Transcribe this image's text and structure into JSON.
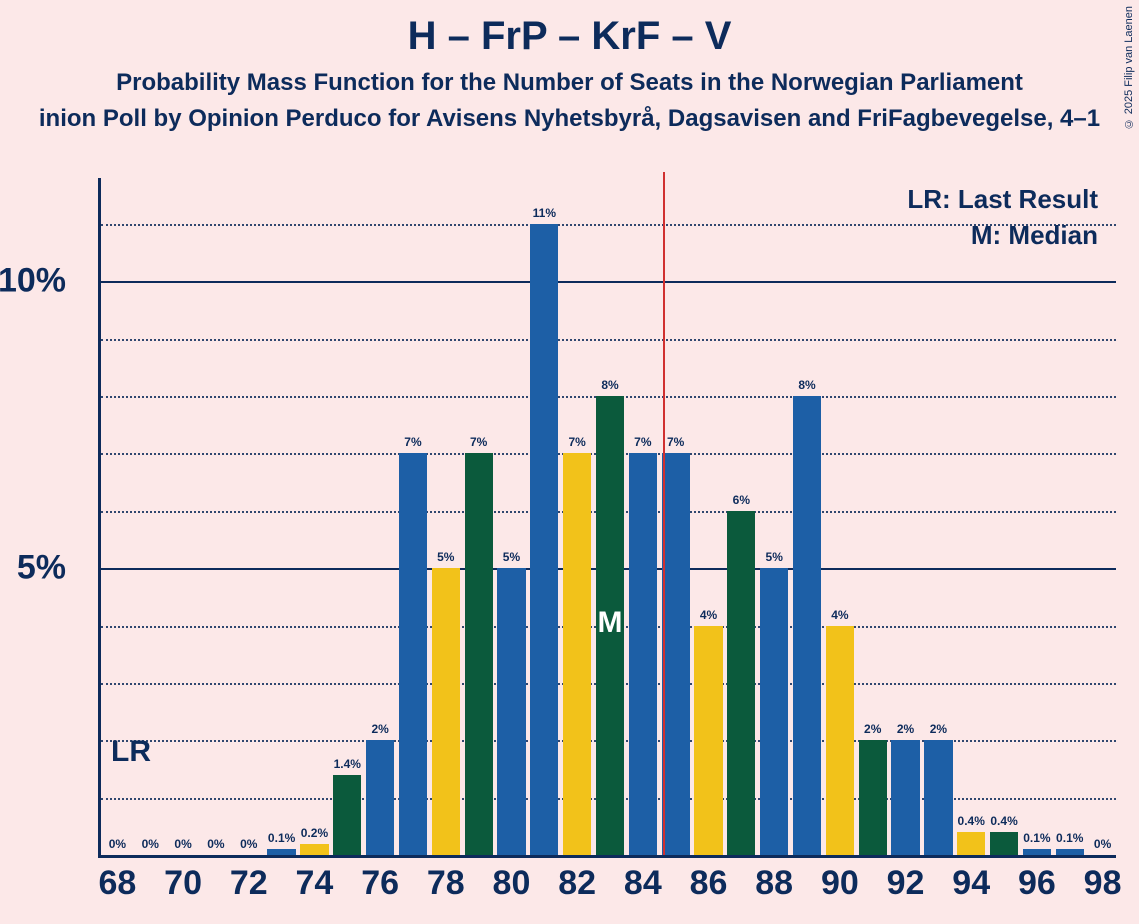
{
  "title": "H – FrP – KrF – V",
  "subtitle": "Probability Mass Function for the Number of Seats in the Norwegian Parliament",
  "subtitle2": "inion Poll by Opinion Perduco for Avisens Nyhetsbyrå, Dagsavisen and FriFagbevegelse, 4–1",
  "copyright": "© 2025 Filip van Laenen",
  "legend_lr": "LR: Last Result",
  "legend_m": "M: Median",
  "lr_label": "LR",
  "m_label": "M",
  "chart": {
    "type": "bar",
    "background_color": "#fce8e8",
    "axis_color": "#0d2b5b",
    "grid_major_color": "#0d2b5b",
    "grid_minor_color": "#0d2b5b",
    "ylim_max": 11.8,
    "y_major_ticks": [
      5,
      10
    ],
    "y_minor_step": 1,
    "x_ticks": [
      68,
      70,
      72,
      74,
      76,
      78,
      80,
      82,
      84,
      86,
      88,
      90,
      92,
      94,
      96,
      98
    ],
    "x_min": 67.5,
    "x_max": 98.5,
    "bar_width_units": 0.86,
    "median_x": 84.6,
    "lr_x": 68,
    "colors": {
      "blue": "#1d5fa6",
      "green": "#0b5a3c",
      "yellow": "#f2c21a"
    },
    "bars": [
      {
        "x": 68,
        "v": 0,
        "c": "blue",
        "l": "0%"
      },
      {
        "x": 69,
        "v": 0,
        "c": "blue",
        "l": "0%"
      },
      {
        "x": 70,
        "v": 0,
        "c": "blue",
        "l": "0%"
      },
      {
        "x": 71,
        "v": 0,
        "c": "blue",
        "l": "0%"
      },
      {
        "x": 72,
        "v": 0,
        "c": "blue",
        "l": "0%"
      },
      {
        "x": 73,
        "v": 0.1,
        "c": "blue",
        "l": "0.1%"
      },
      {
        "x": 74,
        "v": 0.2,
        "c": "yellow",
        "l": "0.2%"
      },
      {
        "x": 75,
        "v": 1.4,
        "c": "green",
        "l": "1.4%"
      },
      {
        "x": 76,
        "v": 2,
        "c": "blue",
        "l": "2%"
      },
      {
        "x": 77,
        "v": 7,
        "c": "blue",
        "l": "7%"
      },
      {
        "x": 78,
        "v": 5,
        "c": "yellow",
        "l": "5%"
      },
      {
        "x": 79,
        "v": 7,
        "c": "green",
        "l": "7%"
      },
      {
        "x": 80,
        "v": 5,
        "c": "blue",
        "l": "5%"
      },
      {
        "x": 81,
        "v": 11,
        "c": "blue",
        "l": "11%"
      },
      {
        "x": 82,
        "v": 7,
        "c": "yellow",
        "l": "7%"
      },
      {
        "x": 83,
        "v": 8,
        "c": "green",
        "l": "8%"
      },
      {
        "x": 84,
        "v": 7,
        "c": "blue",
        "l": "7%"
      },
      {
        "x": 85,
        "v": 7,
        "c": "blue",
        "l": "7%"
      },
      {
        "x": 86,
        "v": 4,
        "c": "yellow",
        "l": "4%"
      },
      {
        "x": 87,
        "v": 6,
        "c": "green",
        "l": "6%"
      },
      {
        "x": 88,
        "v": 5,
        "c": "blue",
        "l": "5%"
      },
      {
        "x": 89,
        "v": 8,
        "c": "blue",
        "l": "8%"
      },
      {
        "x": 90,
        "v": 4,
        "c": "yellow",
        "l": "4%"
      },
      {
        "x": 91,
        "v": 2,
        "c": "green",
        "l": "2%"
      },
      {
        "x": 92,
        "v": 2,
        "c": "blue",
        "l": "2%"
      },
      {
        "x": 93,
        "v": 2,
        "c": "blue",
        "l": "2%"
      },
      {
        "x": 94,
        "v": 0.4,
        "c": "yellow",
        "l": "0.4%"
      },
      {
        "x": 95,
        "v": 0.4,
        "c": "green",
        "l": "0.4%"
      },
      {
        "x": 96,
        "v": 0.1,
        "c": "blue",
        "l": "0.1%"
      },
      {
        "x": 97,
        "v": 0.1,
        "c": "blue",
        "l": "0.1%"
      },
      {
        "x": 98,
        "v": 0,
        "c": "blue",
        "l": "0%"
      }
    ]
  }
}
